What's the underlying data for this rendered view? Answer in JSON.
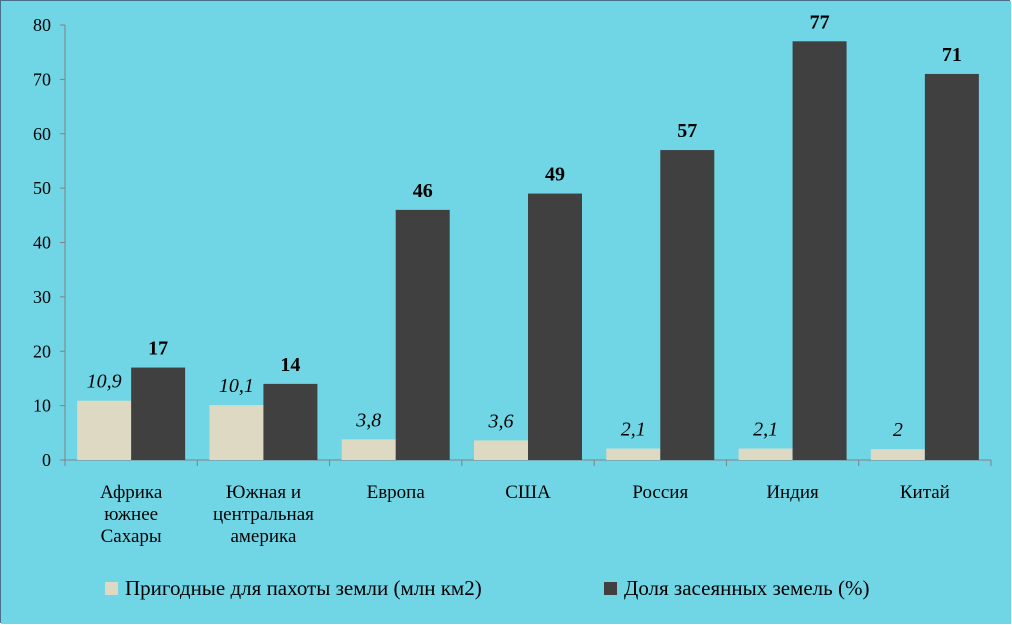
{
  "chart_data": {
    "type": "bar",
    "categories": [
      [
        "Африка",
        "южнее",
        "Сахары"
      ],
      [
        "Южная и",
        "центральная",
        "америка"
      ],
      [
        "Европа"
      ],
      [
        "США"
      ],
      [
        "Россия"
      ],
      [
        "Индия"
      ],
      [
        "Китай"
      ]
    ],
    "series": [
      {
        "name": "Пригодные для пахоты земли (млн км2)",
        "values": [
          10.9,
          10.1,
          3.8,
          3.6,
          2.1,
          2.1,
          2
        ],
        "labels": [
          "10,9",
          "10,1",
          "3,8",
          "3,6",
          "2,1",
          "2,1",
          "2"
        ],
        "color": "#ddd9c3"
      },
      {
        "name": "Доля засеянных земель (%)",
        "values": [
          17,
          14,
          46,
          49,
          57,
          77,
          71
        ],
        "labels": [
          "17",
          "14",
          "46",
          "49",
          "57",
          "77",
          "71"
        ],
        "color": "#404040"
      }
    ],
    "ylim": [
      0,
      80
    ],
    "yticks": [
      0,
      10,
      20,
      30,
      40,
      50,
      60,
      70,
      80
    ],
    "grid": false,
    "legend": "bottom",
    "background": "#70d6e6"
  }
}
